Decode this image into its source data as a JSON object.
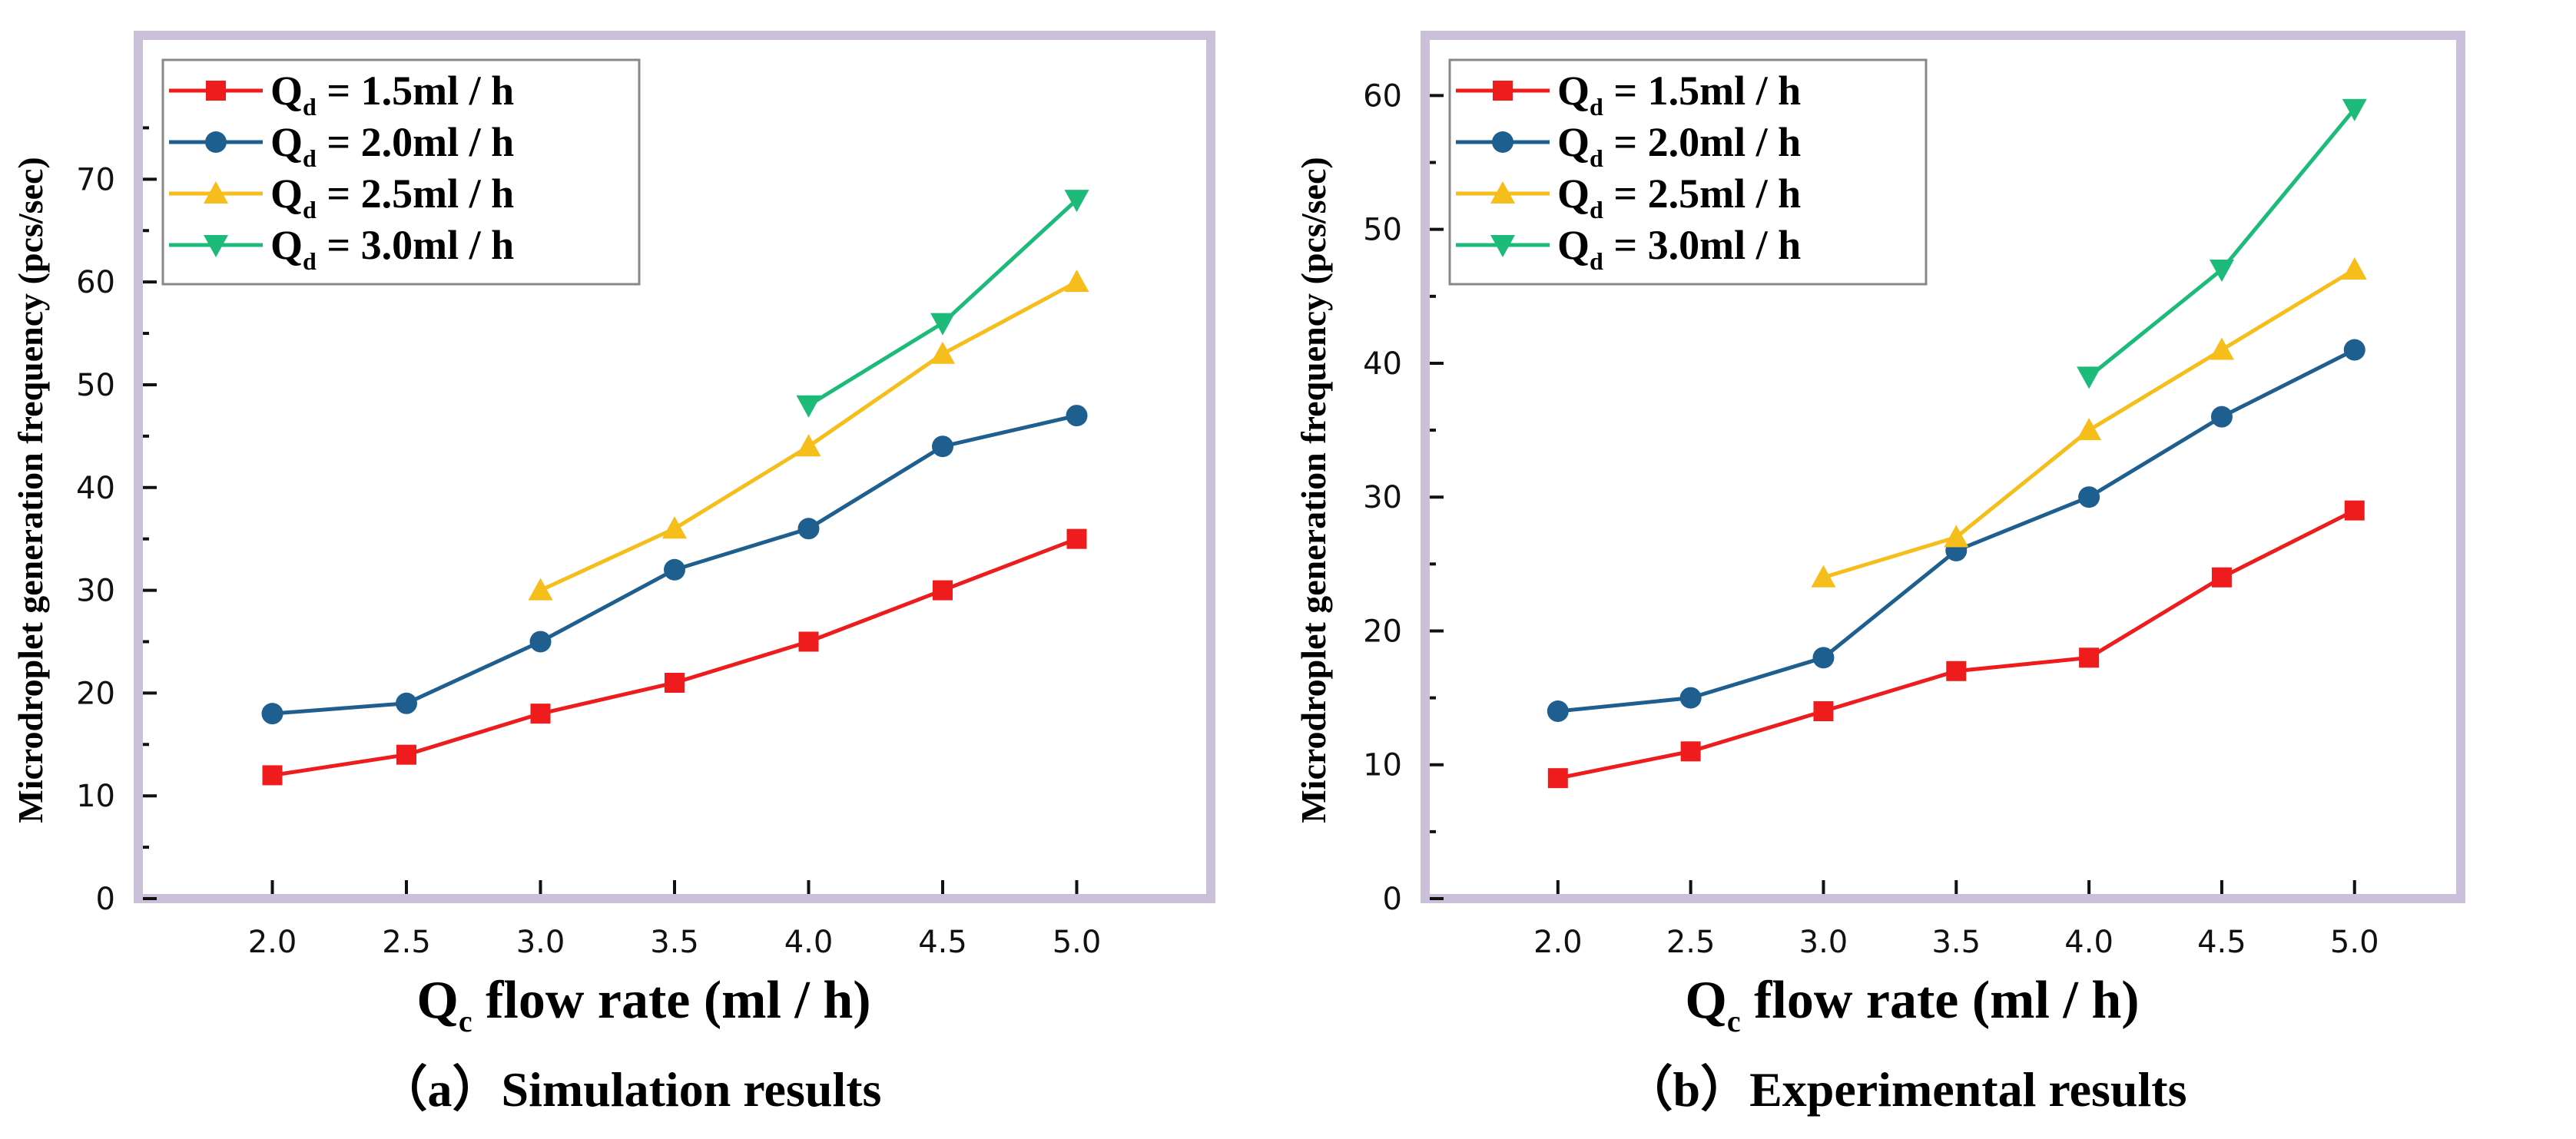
{
  "chart_data": [
    {
      "type": "line",
      "title": "",
      "caption": "（a）Simulation results",
      "xlabel": "Qc flow rate (ml / h)",
      "xlabel_main": "Q",
      "xlabel_sub": "c",
      "xlabel_rest": " flow rate (ml / h)",
      "ylabel": "Microdroplet generation frequency (pcs/sec)",
      "x": [
        2.0,
        2.5,
        3.0,
        3.5,
        4.0,
        4.5,
        5.0
      ],
      "x_tick_labels": [
        "2.0",
        "2.5",
        "3.0",
        "3.5",
        "4.0",
        "4.5",
        "5.0"
      ],
      "y_ticks": [
        0,
        10,
        20,
        30,
        40,
        50,
        60,
        70
      ],
      "y_tick_labels": [
        "0",
        "10",
        "20",
        "30",
        "40",
        "50",
        "60",
        "70"
      ],
      "xlim": [
        1.5,
        5.5
      ],
      "ylim": [
        0,
        84
      ],
      "grid": false,
      "legend_placement": "top-left",
      "series": [
        {
          "name": "Qd = 1.5ml / h",
          "legend_main": "Q",
          "legend_sub": "d",
          "legend_rest": " = 1.5ml / h",
          "color": "#ee1c1c",
          "marker": "square",
          "values": [
            12,
            14,
            18,
            21,
            25,
            30,
            35
          ]
        },
        {
          "name": "Qd = 2.0ml / h",
          "legend_main": "Q",
          "legend_sub": "d",
          "legend_rest": " = 2.0ml / h",
          "color": "#1f5f8f",
          "marker": "circle",
          "values": [
            18,
            19,
            25,
            32,
            36,
            44,
            47
          ]
        },
        {
          "name": "Qd = 2.5ml / h",
          "legend_main": "Q",
          "legend_sub": "d",
          "legend_rest": " = 2.5ml / h",
          "color": "#f5be1a",
          "marker": "triangle-up",
          "values": [
            null,
            null,
            30,
            36,
            44,
            53,
            60
          ]
        },
        {
          "name": "Qd = 3.0ml / h",
          "legend_main": "Q",
          "legend_sub": "d",
          "legend_rest": " = 3.0ml / h",
          "color": "#1dbb7a",
          "marker": "triangle-down",
          "values": [
            null,
            null,
            null,
            null,
            48,
            56,
            68
          ]
        }
      ]
    },
    {
      "type": "line",
      "title": "",
      "caption": "（b）Experimental results",
      "xlabel": "Qc flow rate (ml / h)",
      "xlabel_main": "Q",
      "xlabel_sub": "c",
      "xlabel_rest": " flow rate (ml / h)",
      "ylabel": "Microdroplet generation frequency (pcs/sec)",
      "x": [
        2.0,
        2.5,
        3.0,
        3.5,
        4.0,
        4.5,
        5.0
      ],
      "x_tick_labels": [
        "2.0",
        "2.5",
        "3.0",
        "3.5",
        "4.0",
        "4.5",
        "5.0"
      ],
      "y_ticks": [
        0,
        10,
        20,
        30,
        40,
        50,
        60
      ],
      "y_tick_labels": [
        "0",
        "10",
        "20",
        "30",
        "40",
        "50",
        "60"
      ],
      "xlim": [
        1.5,
        5.4
      ],
      "ylim": [
        0,
        64.5
      ],
      "grid": false,
      "legend_placement": "top-left",
      "series": [
        {
          "name": "Qd = 1.5ml / h",
          "legend_main": "Q",
          "legend_sub": "d",
          "legend_rest": " = 1.5ml / h",
          "color": "#ee1c1c",
          "marker": "square",
          "values": [
            9,
            11,
            14,
            17,
            18,
            24,
            29
          ]
        },
        {
          "name": "Qd = 2.0ml / h",
          "legend_main": "Q",
          "legend_sub": "d",
          "legend_rest": " = 2.0ml / h",
          "color": "#1f5f8f",
          "marker": "circle",
          "values": [
            14,
            15,
            18,
            26,
            30,
            36,
            41
          ]
        },
        {
          "name": "Qd = 2.5ml / h",
          "legend_main": "Q",
          "legend_sub": "d",
          "legend_rest": " = 2.5ml / h",
          "color": "#f5be1a",
          "marker": "triangle-up",
          "values": [
            null,
            null,
            24,
            27,
            35,
            41,
            47
          ]
        },
        {
          "name": "Qd = 3.0ml / h",
          "legend_main": "Q",
          "legend_sub": "d",
          "legend_rest": " = 3.0ml / h",
          "color": "#1dbb7a",
          "marker": "triangle-down",
          "values": [
            null,
            null,
            null,
            null,
            39,
            47,
            59
          ]
        }
      ]
    }
  ],
  "frame_color": "#cbc0da"
}
